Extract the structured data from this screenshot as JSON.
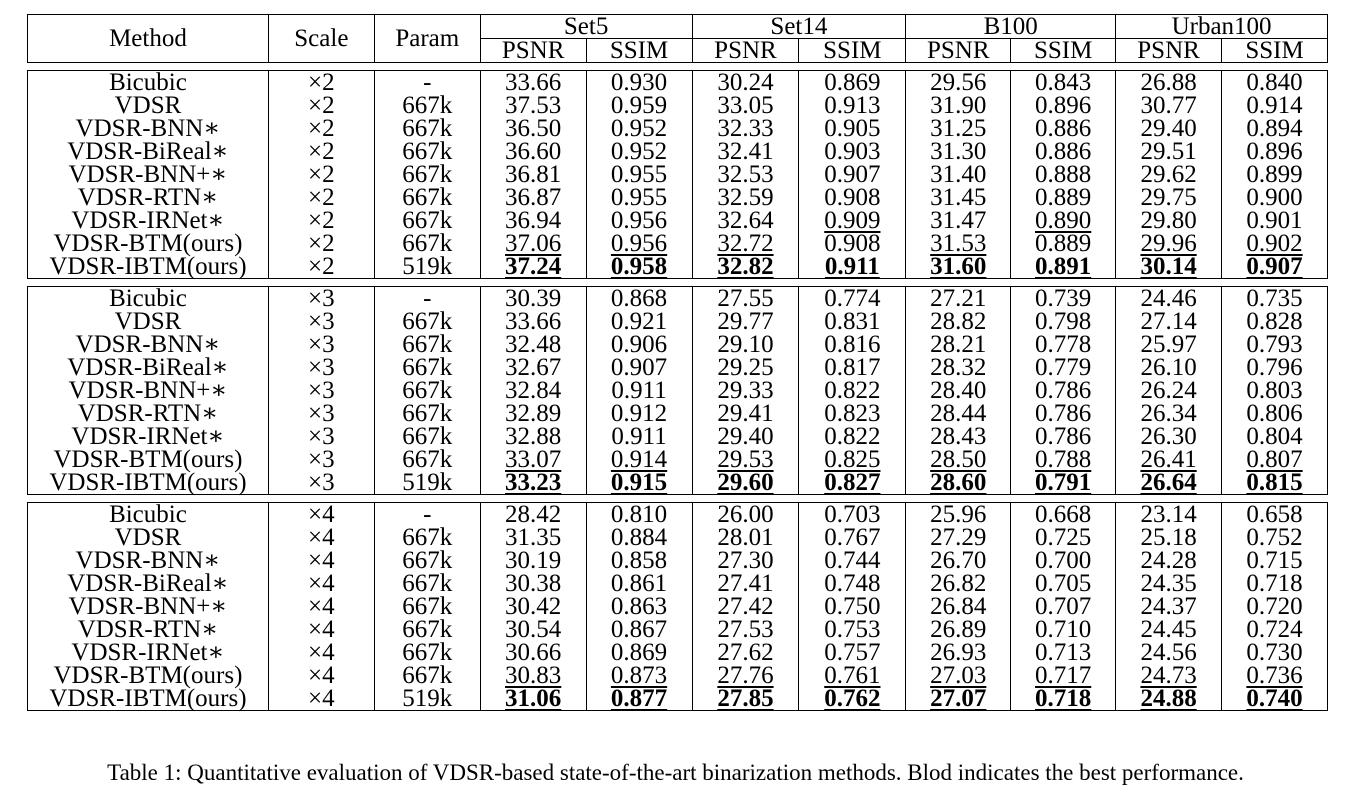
{
  "table": {
    "headers": {
      "method": "Method",
      "scale": "Scale",
      "param": "Param",
      "datasets": [
        "Set5",
        "Set14",
        "B100",
        "Urban100"
      ],
      "metrics": [
        "PSNR",
        "SSIM"
      ]
    },
    "groups": [
      {
        "rows": [
          {
            "method": "Bicubic",
            "scale": "×2",
            "param": "-",
            "values": [
              "33.66",
              "0.930",
              "30.24",
              "0.869",
              "29.56",
              "0.843",
              "26.88",
              "0.840"
            ]
          },
          {
            "method": "VDSR",
            "scale": "×2",
            "param": "667k",
            "values": [
              "37.53",
              "0.959",
              "33.05",
              "0.913",
              "31.90",
              "0.896",
              "30.77",
              "0.914"
            ]
          },
          {
            "method": "VDSR-BNN∗",
            "scale": "×2",
            "param": "667k",
            "values": [
              "36.50",
              "0.952",
              "32.33",
              "0.905",
              "31.25",
              "0.886",
              "29.40",
              "0.894"
            ]
          },
          {
            "method": "VDSR-BiReal∗",
            "scale": "×2",
            "param": "667k",
            "values": [
              "36.60",
              "0.952",
              "32.41",
              "0.903",
              "31.30",
              "0.886",
              "29.51",
              "0.896"
            ]
          },
          {
            "method": "VDSR-BNN+∗",
            "scale": "×2",
            "param": "667k",
            "values": [
              "36.81",
              "0.955",
              "32.53",
              "0.907",
              "31.40",
              "0.888",
              "29.62",
              "0.899"
            ]
          },
          {
            "method": "VDSR-RTN∗",
            "scale": "×2",
            "param": "667k",
            "values": [
              "36.87",
              "0.955",
              "32.59",
              "0.908",
              "31.45",
              "0.889",
              "29.75",
              "0.900"
            ]
          },
          {
            "method": "VDSR-IRNet∗",
            "scale": "×2",
            "param": "667k",
            "values": [
              "36.94",
              "0.956",
              "32.64",
              "0.909",
              "31.47",
              "0.890",
              "29.80",
              "0.901"
            ]
          },
          {
            "method": "VDSR-BTM(ours)",
            "scale": "×2",
            "param": "667k",
            "values": [
              "37.06",
              "0.956",
              "32.72",
              "0.908",
              "31.53",
              "0.889",
              "29.96",
              "0.902"
            ]
          },
          {
            "method": "VDSR-IBTM(ours)",
            "scale": "×2",
            "param": "519k",
            "values": [
              "37.24",
              "0.958",
              "32.82",
              "0.911",
              "31.60",
              "0.891",
              "30.14",
              "0.907"
            ]
          }
        ],
        "underline": [
          [
            7,
            0
          ],
          [
            7,
            1
          ],
          [
            6,
            3
          ],
          [
            7,
            2
          ],
          [
            7,
            4
          ],
          [
            6,
            5
          ],
          [
            7,
            6
          ],
          [
            7,
            7
          ]
        ],
        "bold": [
          [
            8,
            0
          ],
          [
            8,
            1
          ],
          [
            8,
            2
          ],
          [
            8,
            3
          ],
          [
            8,
            4
          ],
          [
            8,
            5
          ],
          [
            8,
            6
          ],
          [
            8,
            7
          ]
        ]
      },
      {
        "rows": [
          {
            "method": "Bicubic",
            "scale": "×3",
            "param": "-",
            "values": [
              "30.39",
              "0.868",
              "27.55",
              "0.774",
              "27.21",
              "0.739",
              "24.46",
              "0.735"
            ]
          },
          {
            "method": "VDSR",
            "scale": "×3",
            "param": "667k",
            "values": [
              "33.66",
              "0.921",
              "29.77",
              "0.831",
              "28.82",
              "0.798",
              "27.14",
              "0.828"
            ]
          },
          {
            "method": "VDSR-BNN∗",
            "scale": "×3",
            "param": "667k",
            "values": [
              "32.48",
              "0.906",
              "29.10",
              "0.816",
              "28.21",
              "0.778",
              "25.97",
              "0.793"
            ]
          },
          {
            "method": "VDSR-BiReal∗",
            "scale": "×3",
            "param": "667k",
            "values": [
              "32.67",
              "0.907",
              "29.25",
              "0.817",
              "28.32",
              "0.779",
              "26.10",
              "0.796"
            ]
          },
          {
            "method": "VDSR-BNN+∗",
            "scale": "×3",
            "param": "667k",
            "values": [
              "32.84",
              "0.911",
              "29.33",
              "0.822",
              "28.40",
              "0.786",
              "26.24",
              "0.803"
            ]
          },
          {
            "method": "VDSR-RTN∗",
            "scale": "×3",
            "param": "667k",
            "values": [
              "32.89",
              "0.912",
              "29.41",
              "0.823",
              "28.44",
              "0.786",
              "26.34",
              "0.806"
            ]
          },
          {
            "method": "VDSR-IRNet∗",
            "scale": "×3",
            "param": "667k",
            "values": [
              "32.88",
              "0.911",
              "29.40",
              "0.822",
              "28.43",
              "0.786",
              "26.30",
              "0.804"
            ]
          },
          {
            "method": "VDSR-BTM(ours)",
            "scale": "×3",
            "param": "667k",
            "values": [
              "33.07",
              "0.914",
              "29.53",
              "0.825",
              "28.50",
              "0.788",
              "26.41",
              "0.807"
            ]
          },
          {
            "method": "VDSR-IBTM(ours)",
            "scale": "×3",
            "param": "519k",
            "values": [
              "33.23",
              "0.915",
              "29.60",
              "0.827",
              "28.60",
              "0.791",
              "26.64",
              "0.815"
            ]
          }
        ],
        "underline": [
          [
            7,
            0
          ],
          [
            7,
            1
          ],
          [
            7,
            2
          ],
          [
            7,
            3
          ],
          [
            7,
            4
          ],
          [
            7,
            5
          ],
          [
            7,
            6
          ],
          [
            7,
            7
          ]
        ],
        "bold": [
          [
            8,
            0
          ],
          [
            8,
            1
          ],
          [
            8,
            2
          ],
          [
            8,
            3
          ],
          [
            8,
            4
          ],
          [
            8,
            5
          ],
          [
            8,
            6
          ],
          [
            8,
            7
          ]
        ]
      },
      {
        "rows": [
          {
            "method": "Bicubic",
            "scale": "×4",
            "param": "-",
            "values": [
              "28.42",
              "0.810",
              "26.00",
              "0.703",
              "25.96",
              "0.668",
              "23.14",
              "0.658"
            ]
          },
          {
            "method": "VDSR",
            "scale": "×4",
            "param": "667k",
            "values": [
              "31.35",
              "0.884",
              "28.01",
              "0.767",
              "27.29",
              "0.725",
              "25.18",
              "0.752"
            ]
          },
          {
            "method": "VDSR-BNN∗",
            "scale": "×4",
            "param": "667k",
            "values": [
              "30.19",
              "0.858",
              "27.30",
              "0.744",
              "26.70",
              "0.700",
              "24.28",
              "0.715"
            ]
          },
          {
            "method": "VDSR-BiReal∗",
            "scale": "×4",
            "param": "667k",
            "values": [
              "30.38",
              "0.861",
              "27.41",
              "0.748",
              "26.82",
              "0.705",
              "24.35",
              "0.718"
            ]
          },
          {
            "method": "VDSR-BNN+∗",
            "scale": "×4",
            "param": "667k",
            "values": [
              "30.42",
              "0.863",
              "27.42",
              "0.750",
              "26.84",
              "0.707",
              "24.37",
              "0.720"
            ]
          },
          {
            "method": "VDSR-RTN∗",
            "scale": "×4",
            "param": "667k",
            "values": [
              "30.54",
              "0.867",
              "27.53",
              "0.753",
              "26.89",
              "0.710",
              "24.45",
              "0.724"
            ]
          },
          {
            "method": "VDSR-IRNet∗",
            "scale": "×4",
            "param": "667k",
            "values": [
              "30.66",
              "0.869",
              "27.62",
              "0.757",
              "26.93",
              "0.713",
              "24.56",
              "0.730"
            ]
          },
          {
            "method": "VDSR-BTM(ours)",
            "scale": "×4",
            "param": "667k",
            "values": [
              "30.83",
              "0.873",
              "27.76",
              "0.761",
              "27.03",
              "0.717",
              "24.73",
              "0.736"
            ]
          },
          {
            "method": "VDSR-IBTM(ours)",
            "scale": "×4",
            "param": "519k",
            "values": [
              "31.06",
              "0.877",
              "27.85",
              "0.762",
              "27.07",
              "0.718",
              "24.88",
              "0.740"
            ]
          }
        ],
        "underline": [
          [
            7,
            0
          ],
          [
            7,
            1
          ],
          [
            7,
            2
          ],
          [
            7,
            3
          ],
          [
            7,
            4
          ],
          [
            7,
            5
          ],
          [
            7,
            6
          ],
          [
            7,
            7
          ]
        ],
        "bold": [
          [
            8,
            0
          ],
          [
            8,
            1
          ],
          [
            8,
            2
          ],
          [
            8,
            3
          ],
          [
            8,
            4
          ],
          [
            8,
            5
          ],
          [
            8,
            6
          ],
          [
            8,
            7
          ]
        ]
      }
    ]
  },
  "caption": "Table 1: Quantitative evaluation of VDSR-based state-of-the-art binarization methods. Blod indicates the best performance."
}
